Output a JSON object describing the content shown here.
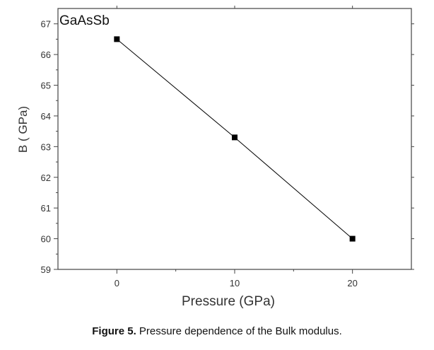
{
  "chart_data": {
    "type": "line",
    "annotation": "GaAsSb",
    "xlabel": "Pressure (GPa)",
    "ylabel": "B ( GPa)",
    "xlim": [
      -5,
      25
    ],
    "ylim": [
      59,
      67.5
    ],
    "xticks": [
      0,
      10,
      20
    ],
    "yticks": [
      59,
      60,
      61,
      62,
      63,
      64,
      65,
      66,
      67
    ],
    "grid": false,
    "series": [
      {
        "x": [
          0,
          10,
          20
        ],
        "y": [
          66.5,
          63.3,
          60.0
        ],
        "marker": "square",
        "color": "#000000"
      }
    ]
  },
  "caption": {
    "label": "Figure 5.",
    "text": " Pressure dependence of the Bulk modulus."
  }
}
